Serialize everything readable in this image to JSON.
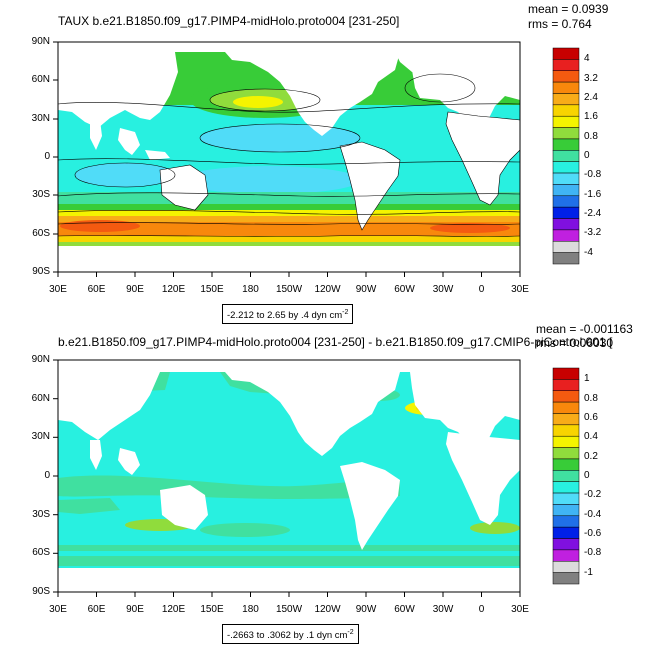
{
  "panel1": {
    "title": "TAUX b.e21.B1850.f09_g17.PIMP4-midHolo.proto004 [231-250]",
    "mean": "mean = 0.0939",
    "rms": "rms = 0.764",
    "info_text": "-2.212 to 2.65 by .4 dyn cm",
    "info_sup": "-2",
    "colorbar": {
      "labels": [
        "4",
        "3.2",
        "2.4",
        "1.6",
        "0.8",
        "0",
        "-0.8",
        "-1.6",
        "-2.4",
        "-3.2",
        "-4"
      ],
      "colors": [
        "#c80000",
        "#e82020",
        "#f45a10",
        "#f8880c",
        "#f8ac18",
        "#f8d400",
        "#f4f400",
        "#90dc3c",
        "#38cc38",
        "#40e0a0",
        "#28f0e0",
        "#50dcf8",
        "#40b4f4",
        "#2070e8",
        "#0020e8",
        "#8010e0",
        "#c020e0",
        "#dcdcdc",
        "#808080"
      ]
    }
  },
  "panel2": {
    "title": "b.e21.B1850.f09_g17.PIMP4-midHolo.proto004 [231-250] - b.e21.B1850.f09_g17.CMIP6-piControl.001 [",
    "mean": "mean = -0.001163",
    "rms": "rms = 0.06030",
    "info_text": "-.2663 to .3062 by .1 dyn cm",
    "info_sup": "-2",
    "colorbar": {
      "labels": [
        "1",
        "0.8",
        "0.6",
        "0.4",
        "0.2",
        "0",
        "-0.2",
        "-0.4",
        "-0.6",
        "-0.8",
        "-1"
      ],
      "colors": [
        "#c80000",
        "#e82020",
        "#f45a10",
        "#f8880c",
        "#f8ac18",
        "#f8d400",
        "#f4f400",
        "#90dc3c",
        "#38cc38",
        "#40e0a0",
        "#28f0e0",
        "#50dcf8",
        "#40b4f4",
        "#2070e8",
        "#0020e8",
        "#8010e0",
        "#c020e0",
        "#dcdcdc",
        "#808080"
      ]
    }
  },
  "axes": {
    "lon_labels": [
      "30E",
      "60E",
      "90E",
      "120E",
      "150E",
      "180",
      "150W",
      "120W",
      "90W",
      "60W",
      "30W",
      "0",
      "30E"
    ],
    "lat_labels": [
      "90N",
      "60N",
      "30N",
      "0",
      "30S",
      "60S",
      "90S"
    ]
  }
}
